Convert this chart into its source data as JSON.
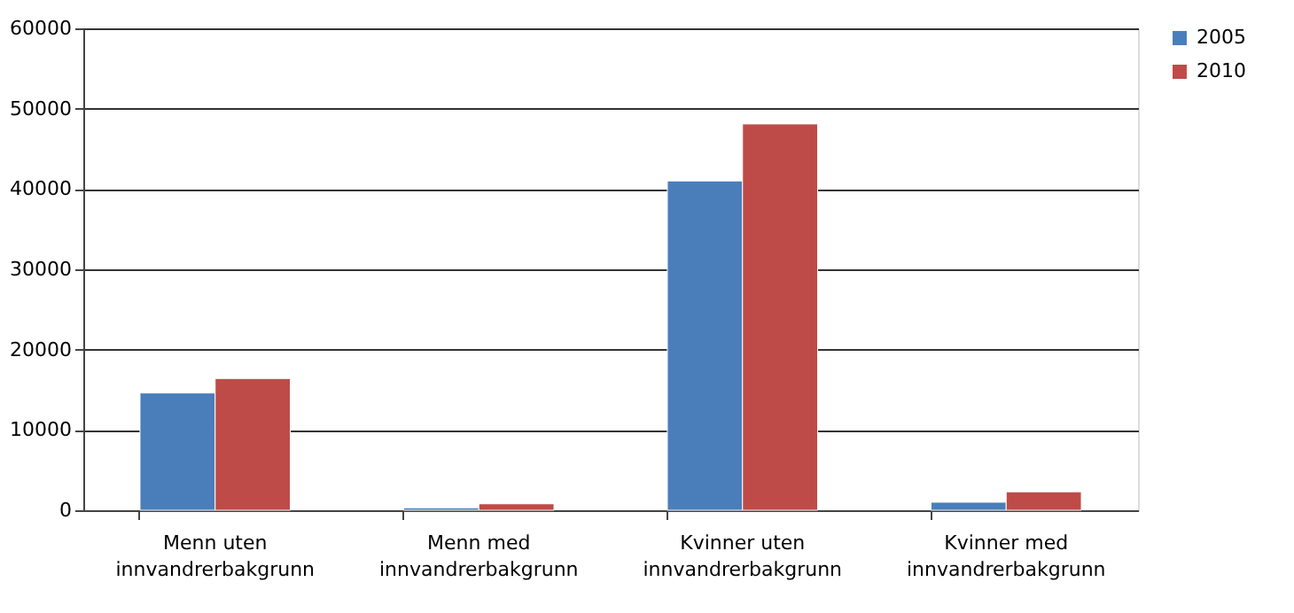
{
  "chart_data": {
    "type": "bar",
    "categories": [
      "Menn uten innvandrerbakgrunn",
      "Menn med innvandrerbakgrunn",
      "Kvinner uten innvandrerbakgrunn",
      "Kvinner med innvandrerbakgrunn"
    ],
    "series": [
      {
        "name": "2005",
        "color": "#4a7ebb",
        "values": [
          14600,
          300,
          41000,
          1000
        ]
      },
      {
        "name": "2010",
        "color": "#be4b48",
        "values": [
          16400,
          800,
          48100,
          2300
        ]
      }
    ],
    "ylim": [
      0,
      60000
    ],
    "yticks": [
      0,
      10000,
      20000,
      30000,
      40000,
      50000,
      60000
    ],
    "grid": "y",
    "legend": "right"
  }
}
